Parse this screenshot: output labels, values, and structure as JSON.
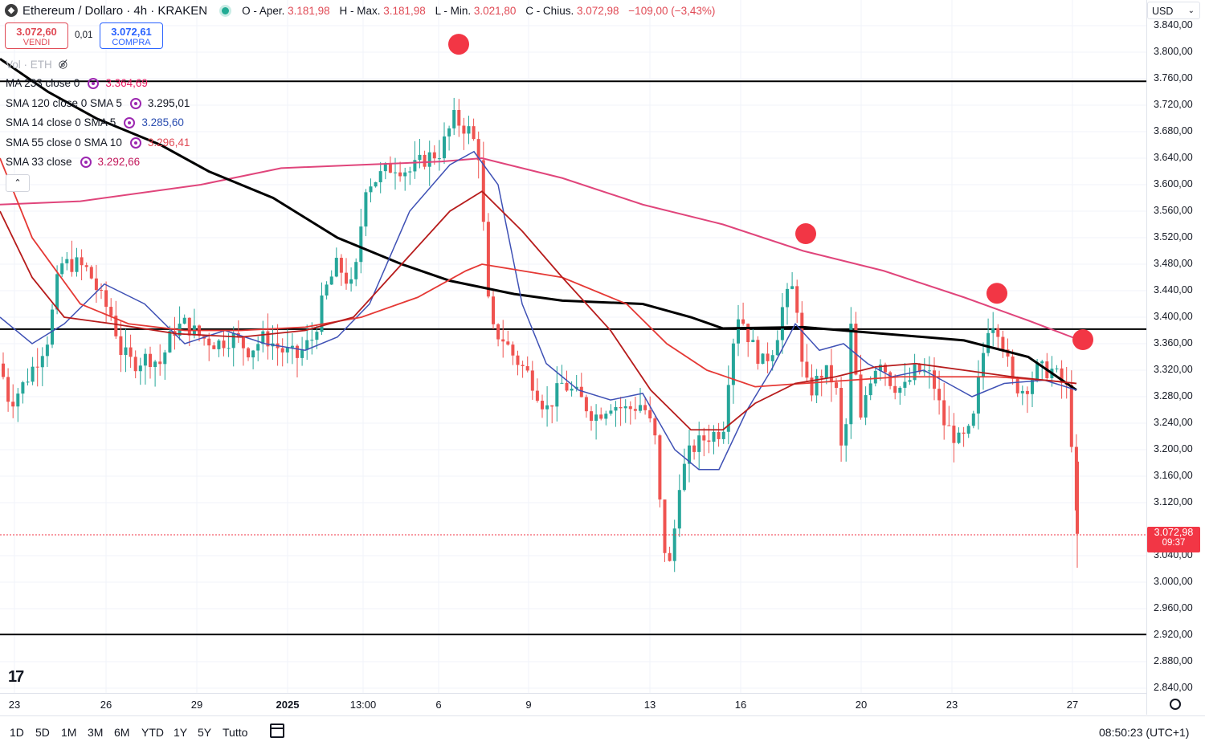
{
  "header": {
    "symbol": "Ethereum / Dollaro · 4h · KRAKEN",
    "ohlc": [
      {
        "k": "O - Aper.",
        "v": "3.181,98"
      },
      {
        "k": "H - Max.",
        "v": "3.181,98"
      },
      {
        "k": "L - Min.",
        "v": "3.021,80"
      },
      {
        "k": "C - Chius.",
        "v": "3.072,98"
      },
      {
        "k": "",
        "v": "−109,00 (−3,43%)"
      }
    ]
  },
  "trade": {
    "sell_price": "3.072,60",
    "sell_label": "VENDI",
    "spread": "0,01",
    "buy_price": "3.072,61",
    "buy_label": "COMPRA"
  },
  "indicators": [
    {
      "label": "Vol · ETH",
      "value": ""
    },
    {
      "label": "MA 233 close 0",
      "value": "3.364,69",
      "color": "#e91e63"
    },
    {
      "label": "SMA 120 close 0 SMA 5",
      "value": "3.295,01",
      "color": "#131722"
    },
    {
      "label": "SMA 14 close 0 SMA 5",
      "value": "3.285,60",
      "color": "#2a4db0"
    },
    {
      "label": "SMA 55 close 0 SMA 10",
      "value": "3.296,41",
      "color": "#e04a55"
    },
    {
      "label": "SMA 33 close",
      "value": "3.292,66",
      "color": "#c2185b"
    }
  ],
  "y_axis": {
    "currency": "USD",
    "labels": [
      "3.840,00",
      "3.800,00",
      "3.760,00",
      "3.720,00",
      "3.680,00",
      "3.640,00",
      "3.600,00",
      "3.560,00",
      "3.520,00",
      "3.480,00",
      "3.440,00",
      "3.400,00",
      "3.360,00",
      "3.320,00",
      "3.280,00",
      "3.240,00",
      "3.200,00",
      "3.160,00",
      "3.120,00",
      "3.040,00",
      "3.000,00",
      "2.960,00",
      "2.920,00",
      "2.880,00",
      "2.840,00"
    ],
    "last_price": "3.072,98",
    "countdown": "09:37"
  },
  "x_axis": {
    "labels": [
      "23",
      "26",
      "29",
      "2025",
      "13:00",
      "6",
      "9",
      "13",
      "16",
      "20",
      "23",
      "27"
    ]
  },
  "range_buttons": [
    "1D",
    "5D",
    "1M",
    "3M",
    "6M",
    "YTD",
    "1Y",
    "5Y",
    "Tutto"
  ],
  "clock": "08:50:23 (UTC+1)",
  "colors": {
    "up": "#26a69a",
    "down": "#ef5350",
    "ma233": "#e0457b",
    "sma120": "#000000",
    "sma14": "#3f51b5",
    "sma55": "#e53935",
    "sma33": "#b71c1c"
  },
  "chart_data": {
    "type": "candlestick",
    "interval": "4h",
    "ylim": [
      2820,
      3845
    ],
    "x": [
      "23",
      "26",
      "29",
      "2025",
      "13:00",
      "6",
      "9",
      "13",
      "16",
      "20",
      "23",
      "27"
    ],
    "horizontal_lines": [
      3756,
      3382,
      2921
    ],
    "markers": [
      {
        "x": "6",
        "y": 3812
      },
      {
        "x": "16",
        "y": 3526
      },
      {
        "x": "23",
        "y": 3436
      },
      {
        "x": "27",
        "y": 3366
      }
    ],
    "last_candle": {
      "open": 3181.98,
      "high": 3181.98,
      "low": 3021.8,
      "close": 3072.98
    }
  }
}
